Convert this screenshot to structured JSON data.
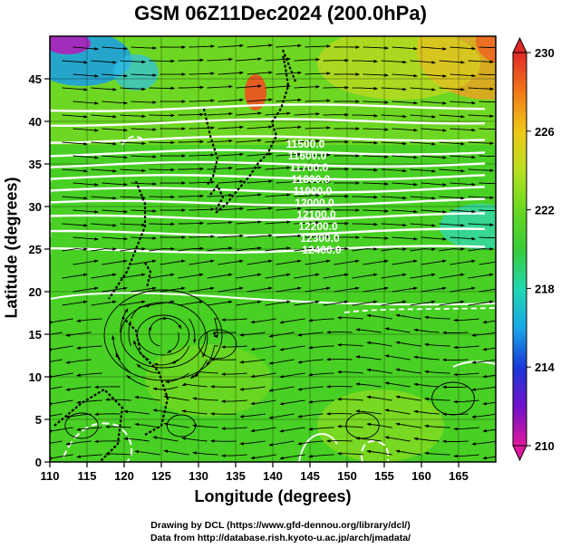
{
  "title": "GSM 06Z11Dec2024 (200.0hPa)",
  "xlabel": "Longitude (degrees)",
  "ylabel": "Latitude  (degrees)",
  "credits": [
    "Drawing by DCL (https://www.gfd-dennou.org/library/dcl/)",
    "Data from http://database.rish.kyoto-u.ac.jp/arch/jmadata/"
  ],
  "chart_data": {
    "type": "map",
    "variable": "temperature",
    "xlim": [
      110,
      170
    ],
    "ylim": [
      0,
      50
    ],
    "x_ticks": [
      110,
      115,
      120,
      125,
      130,
      135,
      140,
      145,
      150,
      155,
      160,
      165
    ],
    "y_ticks": [
      0,
      5,
      10,
      15,
      20,
      25,
      30,
      35,
      40,
      45
    ],
    "colorbar": {
      "min": 210,
      "max": 230,
      "ticks": [
        210,
        214,
        218,
        222,
        226,
        230
      ],
      "colors": [
        "#e0189e",
        "#7010c8",
        "#1838d8",
        "#18a8e8",
        "#20d8b0",
        "#38cc38",
        "#68d820",
        "#b8e020",
        "#f0c818",
        "#f07818",
        "#e02828"
      ]
    },
    "contour_labels": [
      "11500.0",
      "11600.0",
      "11700.0",
      "11800.0",
      "11900.0",
      "12000.0",
      "12100.0",
      "12200.0",
      "12300.0",
      "12400.0"
    ]
  }
}
